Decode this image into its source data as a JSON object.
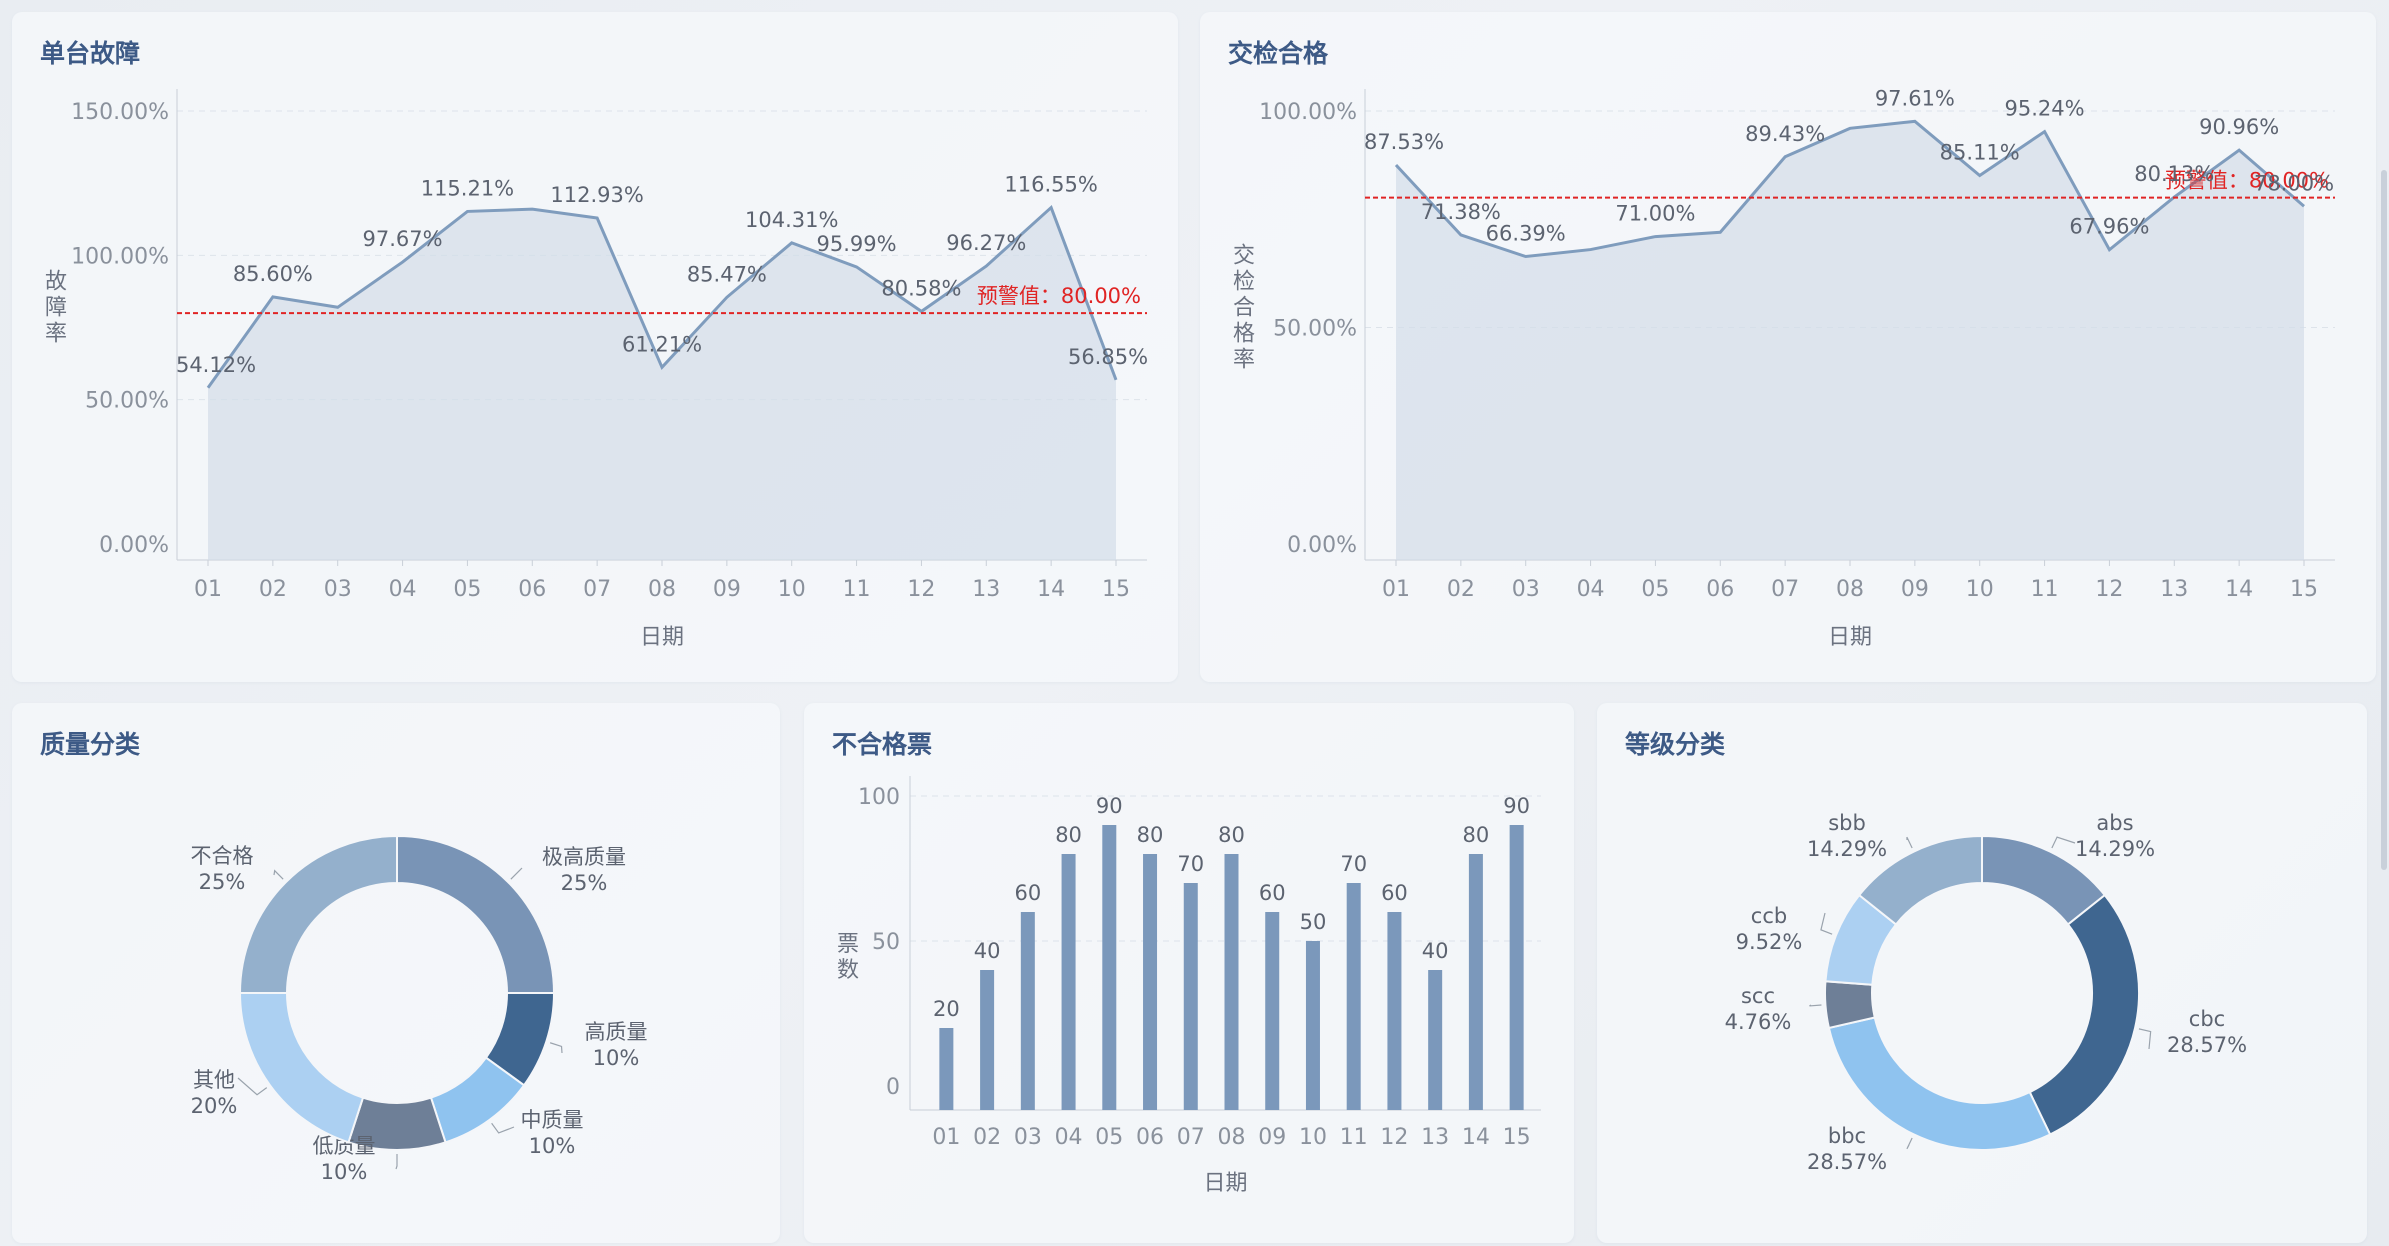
{
  "panels": {
    "fault": {
      "title": "单台故障"
    },
    "inspection": {
      "title": "交检合格"
    },
    "quality": {
      "title": "质量分类"
    },
    "defect": {
      "title": "不合格票"
    },
    "grade": {
      "title": "等级分类"
    }
  },
  "colors": {
    "line": "#7f9cbd",
    "area": "#d3dde8",
    "warn": "#e02424",
    "bar": "#7b98bb"
  },
  "chart_data": [
    {
      "id": "fault",
      "type": "area",
      "title": "单台故障",
      "xlabel": "日期",
      "ylabel": "故障率",
      "categories": [
        "01",
        "02",
        "03",
        "04",
        "05",
        "06",
        "07",
        "08",
        "09",
        "10",
        "11",
        "12",
        "13",
        "14",
        "15"
      ],
      "values": [
        54.12,
        85.6,
        82.0,
        97.67,
        115.21,
        116.0,
        112.93,
        61.21,
        85.47,
        104.31,
        95.99,
        80.58,
        96.27,
        116.55,
        56.85
      ],
      "labels": [
        "54.12%",
        "85.60%",
        "",
        "97.67%",
        "115.21%",
        "",
        "112.93%",
        "61.21%",
        "85.47%",
        "104.31%",
        "95.99%",
        "80.58%",
        "96.27%",
        "116.55%",
        "56.85%"
      ],
      "yticks": [
        "150.00%",
        "100.00%",
        "50.00%",
        "0.00%"
      ],
      "ylim": [
        0,
        150
      ],
      "warning": {
        "value": 80,
        "label": "预警值：80.00%"
      },
      "grid": true
    },
    {
      "id": "inspection",
      "type": "area",
      "title": "交检合格",
      "xlabel": "日期",
      "ylabel": "交检合格率",
      "categories": [
        "01",
        "02",
        "03",
        "04",
        "05",
        "06",
        "07",
        "08",
        "09",
        "10",
        "11",
        "12",
        "13",
        "14",
        "15"
      ],
      "values": [
        87.53,
        71.38,
        66.39,
        68.0,
        71.0,
        72.0,
        89.43,
        96.0,
        97.61,
        85.11,
        95.24,
        67.96,
        80.13,
        90.96,
        78.0
      ],
      "labels": [
        "87.53%",
        "71.38%",
        "66.39%",
        "",
        "71.00%",
        "",
        "89.43%",
        "",
        "97.61%",
        "85.11%",
        "95.24%",
        "67.96%",
        "80.13%",
        "90.96%",
        "78.00%"
      ],
      "yticks": [
        "100.00%",
        "50.00%",
        "0.00%"
      ],
      "ylim": [
        0,
        100
      ],
      "warning": {
        "value": 80,
        "label": "预警值：80.00%"
      },
      "grid": true
    },
    {
      "id": "quality",
      "type": "pie",
      "title": "质量分类",
      "slices": [
        {
          "name": "极高质量",
          "value": 25,
          "label": "25%",
          "color": "#7994b6"
        },
        {
          "name": "高质量",
          "value": 10,
          "label": "10%",
          "color": "#3f6690"
        },
        {
          "name": "中质量",
          "value": 10,
          "label": "10%",
          "color": "#8fc3ef"
        },
        {
          "name": "低质量",
          "value": 10,
          "label": "10%",
          "color": "#6e7f97"
        },
        {
          "name": "其他",
          "value": 20,
          "label": "20%",
          "color": "#acd0f2"
        },
        {
          "name": "不合格",
          "value": 25,
          "label": "25%",
          "color": "#94b0cc"
        }
      ]
    },
    {
      "id": "defect",
      "type": "bar",
      "title": "不合格票",
      "xlabel": "日期",
      "ylabel": "票数",
      "categories": [
        "01",
        "02",
        "03",
        "04",
        "05",
        "06",
        "07",
        "08",
        "09",
        "10",
        "11",
        "12",
        "13",
        "14",
        "15"
      ],
      "values": [
        20,
        40,
        60,
        80,
        90,
        80,
        70,
        80,
        60,
        50,
        70,
        60,
        40,
        80,
        90
      ],
      "yticks": [
        "100",
        "50",
        "0"
      ],
      "ylim": [
        0,
        100
      ],
      "grid": true
    },
    {
      "id": "grade",
      "type": "pie",
      "title": "等级分类",
      "slices": [
        {
          "name": "abs",
          "value": 14.29,
          "label": "14.29%",
          "color": "#7994b6"
        },
        {
          "name": "cbc",
          "value": 28.57,
          "label": "28.57%",
          "color": "#3f6690"
        },
        {
          "name": "bbc",
          "value": 28.57,
          "label": "28.57%",
          "color": "#8fc3ef"
        },
        {
          "name": "scc",
          "value": 4.76,
          "label": "4.76%",
          "color": "#6e7f97"
        },
        {
          "name": "ccb",
          "value": 9.52,
          "label": "9.52%",
          "color": "#acd0f2"
        },
        {
          "name": "sbb",
          "value": 14.29,
          "label": "14.29%",
          "color": "#94b0cc"
        }
      ]
    }
  ]
}
